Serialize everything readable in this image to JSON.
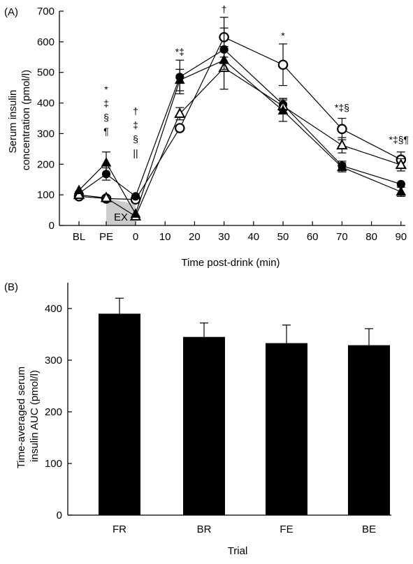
{
  "chart_data": [
    {
      "panel": "(A)",
      "type": "line",
      "xlabel": "Time post-drink (min)",
      "ylabel": [
        "Serum insulin",
        "concentration (pmol/l)"
      ],
      "ylim": [
        0,
        700
      ],
      "yticks": [
        0,
        100,
        200,
        300,
        400,
        500,
        600,
        700
      ],
      "xticks": [
        "BL",
        "PE",
        "0",
        "10",
        "20",
        "30",
        "40",
        "50",
        "60",
        "70",
        "80",
        "90"
      ],
      "x": [
        "BL",
        "PE",
        "0",
        "15",
        "30",
        "50",
        "70",
        "90"
      ],
      "shaded_region": {
        "from": "PE",
        "to": "0",
        "label": "EX"
      },
      "series": [
        {
          "marker": "open-circle",
          "values": [
            95,
            88,
            85,
            318,
            615,
            525,
            315,
            215
          ],
          "errors": [
            null,
            null,
            null,
            null,
            65,
            68,
            35,
            25
          ]
        },
        {
          "marker": "filled-circle",
          "values": [
            105,
            168,
            95,
            485,
            575,
            395,
            195,
            135
          ],
          "errors": [
            null,
            20,
            null,
            55,
            70,
            20,
            15,
            null
          ]
        },
        {
          "marker": "open-triangle",
          "values": [
            100,
            90,
            30,
            365,
            515,
            390,
            262,
            198
          ],
          "errors": [
            null,
            null,
            null,
            20,
            70,
            25,
            25,
            20
          ]
        },
        {
          "marker": "filled-triangle",
          "values": [
            115,
            205,
            38,
            475,
            540,
            375,
            190,
            110
          ],
          "errors": [
            null,
            35,
            null,
            35,
            30,
            35,
            15,
            15
          ]
        }
      ],
      "annotations": [
        {
          "x": "PE",
          "lines": [
            "*",
            "‡",
            "§",
            "¶"
          ]
        },
        {
          "x": "0",
          "lines": [
            "†",
            "‡",
            "§",
            "||"
          ]
        },
        {
          "x": "15",
          "lines": [
            "*‡"
          ]
        },
        {
          "x": "30",
          "lines": [
            "†"
          ]
        },
        {
          "x": "50",
          "lines": [
            "*"
          ]
        },
        {
          "x": "70",
          "lines": [
            "*‡§"
          ]
        },
        {
          "x": "90",
          "lines": [
            "*‡§¶"
          ]
        }
      ]
    },
    {
      "panel": "(B)",
      "type": "bar",
      "xlabel": "Trial",
      "ylabel": [
        "Time-averaged serum",
        "insulin AUC (pmol/l)"
      ],
      "ylim": [
        0,
        450
      ],
      "yticks": [
        0,
        100,
        200,
        300,
        400
      ],
      "categories": [
        "FR",
        "BR",
        "FE",
        "BE"
      ],
      "values": [
        390,
        345,
        333,
        329
      ],
      "errors": [
        30,
        27,
        35,
        32
      ]
    }
  ]
}
